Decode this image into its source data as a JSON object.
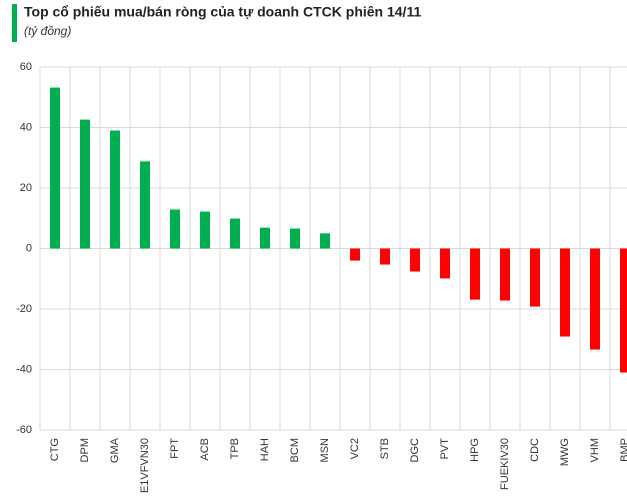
{
  "chart_data": {
    "type": "bar",
    "title": "Top cổ phiếu mua/bán ròng của tự doanh CTCK phiên 14/11",
    "subtitle": "(tỷ đồng)",
    "categories": [
      "CTG",
      "DPM",
      "GMA",
      "E1VFVN30",
      "FPT",
      "ACB",
      "TPB",
      "HAH",
      "BCM",
      "MSN",
      "VC2",
      "STB",
      "DGC",
      "PVT",
      "HPG",
      "FUEKIV30",
      "CDC",
      "MWG",
      "VHM",
      "BMP"
    ],
    "values": [
      53.2,
      42.6,
      39,
      28.8,
      12.9,
      12.2,
      9.9,
      6.9,
      6.6,
      5,
      -4,
      -5.3,
      -7.6,
      -9.9,
      -16.9,
      -17.2,
      -19.2,
      -29.1,
      -33.4,
      -41
    ],
    "positive_color": "#00b050",
    "negative_color": "#ff0000",
    "ylim": [
      -60,
      60
    ],
    "yticks": [
      -60,
      -40,
      -20,
      0,
      20,
      40,
      60
    ],
    "grid": true
  }
}
